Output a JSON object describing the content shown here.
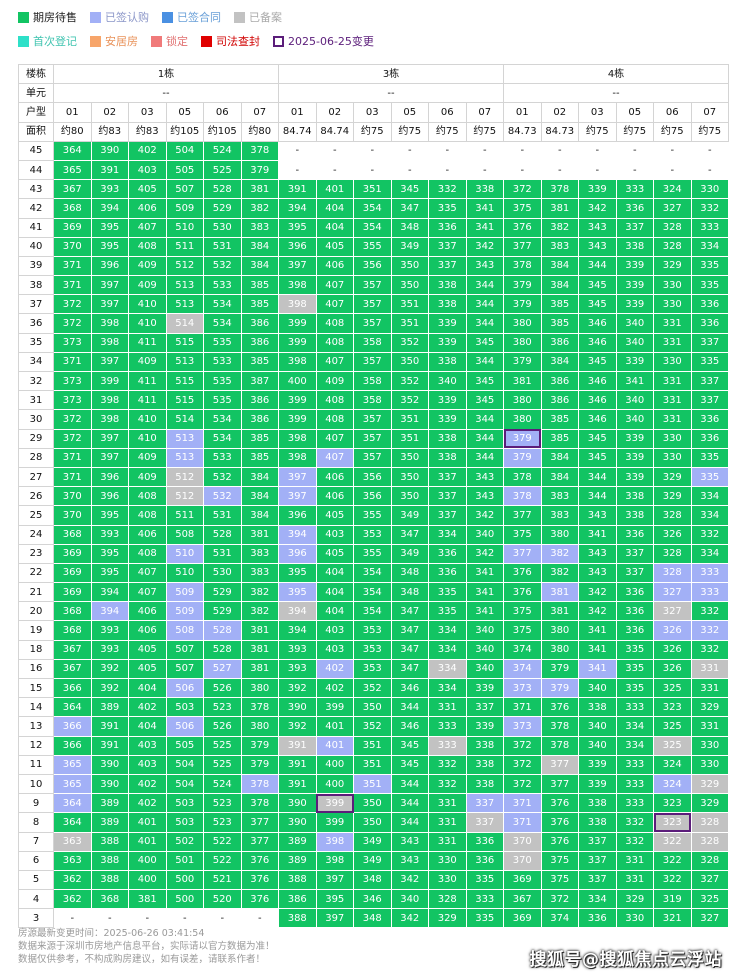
{
  "legend": {
    "row1": [
      {
        "label": "期房待售",
        "color": "#12c463",
        "text_color": "#222222",
        "style": "fill"
      },
      {
        "label": "已签认购",
        "color": "#a2b0f6",
        "text_color": "#8b96c8",
        "style": "fill"
      },
      {
        "label": "已签合同",
        "color": "#4a90e2",
        "text_color": "#6aa0d8",
        "style": "fill"
      },
      {
        "label": "已备案",
        "color": "#c2c2c2",
        "text_color": "#aaaaaa",
        "style": "fill"
      }
    ],
    "row2": [
      {
        "label": "首次登记",
        "color": "#2ee0c8",
        "text_color": "#40c4b0",
        "style": "fill"
      },
      {
        "label": "安居房",
        "color": "#f7a56a",
        "text_color": "#e8925a",
        "style": "fill"
      },
      {
        "label": "锁定",
        "color": "#f07a7a",
        "text_color": "#e07070",
        "style": "fill"
      },
      {
        "label": "司法查封",
        "color": "#e00000",
        "text_color": "#d00000",
        "style": "fill"
      },
      {
        "label": "2025-06-25变更",
        "color": "#5b1d7a",
        "text_color": "#5b1d7a",
        "style": "outline"
      }
    ]
  },
  "table": {
    "label_building": "楼栋",
    "label_unit": "单元",
    "label_room": "户型",
    "label_area": "面积",
    "empty_mark": "-",
    "buildings": [
      {
        "name": "1栋",
        "unit": "--",
        "rooms": [
          "01",
          "02",
          "03",
          "05",
          "06",
          "07"
        ],
        "areas": [
          "约80",
          "约83",
          "约83",
          "约105",
          "约105",
          "约80"
        ]
      },
      {
        "name": "3栋",
        "unit": "--",
        "rooms": [
          "01",
          "02",
          "03",
          "05",
          "06",
          "07"
        ],
        "areas": [
          "84.74",
          "84.74",
          "约75",
          "约75",
          "约75",
          "约75"
        ]
      },
      {
        "name": "4栋",
        "unit": "--",
        "rooms": [
          "01",
          "02",
          "03",
          "05",
          "06",
          "07"
        ],
        "areas": [
          "84.73",
          "84.73",
          "约75",
          "约75",
          "约75",
          "约75"
        ]
      }
    ],
    "rows": [
      {
        "floor": "45",
        "b1": "364 390 402 504 524 378",
        "b3": "- - - - - -",
        "b4": "- - - - - -"
      },
      {
        "floor": "44",
        "b1": "365 391 403 505 525 379",
        "b3": "- - - - - -",
        "b4": "- - - - - -"
      },
      {
        "floor": "43",
        "b1": "367 393 405 507 528 381",
        "b3": "391 401 351 345 332 338",
        "b4": "372 378 339 333 324 330"
      },
      {
        "floor": "42",
        "b1": "368 394 406 509 529 382",
        "b3": "394 404 354 347 335 341",
        "b4": "375 381 342 336 327 332"
      },
      {
        "floor": "41",
        "b1": "369 395 407 510 530 383",
        "b3": "395 404 354 348 336 341",
        "b4": "376 382 343 337 328 333"
      },
      {
        "floor": "40",
        "b1": "370 395 408 511 531 384",
        "b3": "396 405 355 349 337 342",
        "b4": "377 383 343 338 328 334"
      },
      {
        "floor": "39",
        "b1": "371 396 409 512 532 384",
        "b3": "397 406 356 350 337 343",
        "b4": "378 384 344 339 329 335"
      },
      {
        "floor": "38",
        "b1": "371 397 409 513 533 385",
        "b3": "398 407 357 350 338 344",
        "b4": "379 384 345 339 330 335"
      },
      {
        "floor": "37",
        "b1": "372 397 410 513 534 385",
        "b3": "398 407 357 351 338 344",
        "b4": "379 385 345 339 330 336"
      },
      {
        "floor": "36",
        "b1": "372 398 410 514 534 386",
        "b3": "399 408 357 351 339 344",
        "b4": "380 385 346 340 331 336"
      },
      {
        "floor": "35",
        "b1": "373 398 411 515 535 386",
        "b3": "399 408 358 352 339 345",
        "b4": "380 386 346 340 331 337"
      },
      {
        "floor": "34",
        "b1": "371 397 409 513 533 385",
        "b3": "398 407 357 350 338 344",
        "b4": "379 384 345 339 330 335"
      },
      {
        "floor": "32",
        "b1": "373 399 411 515 535 387",
        "b3": "400 409 358 352 340 345",
        "b4": "381 386 346 341 331 337"
      },
      {
        "floor": "31",
        "b1": "373 398 411 515 535 386",
        "b3": "399 408 358 352 339 345",
        "b4": "380 386 346 340 331 337"
      },
      {
        "floor": "30",
        "b1": "372 398 410 514 534 386",
        "b3": "399 408 357 351 339 344",
        "b4": "380 385 346 340 331 336"
      },
      {
        "floor": "29",
        "b1": "372 397 410 513 534 385",
        "b3": "398 407 357 351 338 344",
        "b4": "379 385 345 339 330 336"
      },
      {
        "floor": "28",
        "b1": "371 397 409 513 533 385",
        "b3": "398 407 357 350 338 344",
        "b4": "379 384 345 339 330 335"
      },
      {
        "floor": "27",
        "b1": "371 396 409 512 532 384",
        "b3": "397 406 356 350 337 343",
        "b4": "378 384 344 339 329 335"
      },
      {
        "floor": "26",
        "b1": "370 396 408 512 532 384",
        "b3": "397 406 356 350 337 343",
        "b4": "378 383 344 338 329 334"
      },
      {
        "floor": "25",
        "b1": "370 395 408 511 531 384",
        "b3": "396 405 355 349 337 342",
        "b4": "377 383 343 338 328 334"
      },
      {
        "floor": "24",
        "b1": "368 393 406 508 528 381",
        "b3": "394 403 353 347 334 340",
        "b4": "375 380 341 336 326 332"
      },
      {
        "floor": "23",
        "b1": "369 395 408 510 531 383",
        "b3": "396 405 355 349 336 342",
        "b4": "377 382 343 337 328 334"
      },
      {
        "floor": "22",
        "b1": "369 395 407 510 530 383",
        "b3": "395 404 354 348 336 341",
        "b4": "376 382 343 337 328 333"
      },
      {
        "floor": "21",
        "b1": "369 394 407 509 529 382",
        "b3": "395 404 354 348 335 341",
        "b4": "376 381 342 336 327 333"
      },
      {
        "floor": "20",
        "b1": "368 394 406 509 529 382",
        "b3": "394 404 354 347 335 341",
        "b4": "375 381 342 336 327 332"
      },
      {
        "floor": "19",
        "b1": "368 393 406 508 528 381",
        "b3": "394 403 353 347 334 340",
        "b4": "375 380 341 336 326 332"
      },
      {
        "floor": "18",
        "b1": "367 393 405 507 528 381",
        "b3": "393 403 353 347 334 340",
        "b4": "374 380 341 335 326 332"
      },
      {
        "floor": "16",
        "b1": "367 392 405 507 527 381",
        "b3": "393 402 353 347 334 340",
        "b4": "374 379 341 335 326 331"
      },
      {
        "floor": "15",
        "b1": "366 392 404 506 526 380",
        "b3": "392 402 352 346 334 339",
        "b4": "373 379 340 335 325 331"
      },
      {
        "floor": "14",
        "b1": "364 389 402 503 523 378",
        "b3": "390 399 350 344 331 337",
        "b4": "371 376 338 333 323 329"
      },
      {
        "floor": "13",
        "b1": "366 391 404 506 526 380",
        "b3": "392 401 352 346 333 339",
        "b4": "373 378 340 334 325 331"
      },
      {
        "floor": "12",
        "b1": "366 391 403 505 525 379",
        "b3": "391 401 351 345 333 338",
        "b4": "372 378 340 334 325 330"
      },
      {
        "floor": "11",
        "b1": "365 390 403 504 525 379",
        "b3": "391 400 351 345 332 338",
        "b4": "372 377 339 333 324 330"
      },
      {
        "floor": "10",
        "b1": "365 390 402 504 524 378",
        "b3": "391 400 351 344 332 338",
        "b4": "372 377 339 333 324 329"
      },
      {
        "floor": "9",
        "b1": "364 389 402 503 523 378",
        "b3": "390 399 350 344 331 337",
        "b4": "371 376 338 333 323 329"
      },
      {
        "floor": "8",
        "b1": "364 389 401 503 523 377",
        "b3": "390 399 350 344 331 337",
        "b4": "371 376 338 332 323 328"
      },
      {
        "floor": "7",
        "b1": "363 388 401 502 522 377",
        "b3": "389 398 349 343 331 336",
        "b4": "370 376 337 332 322 328"
      },
      {
        "floor": "6",
        "b1": "363 388 400 501 522 376",
        "b3": "389 398 349 343 330 336",
        "b4": "370 375 337 331 322 328"
      },
      {
        "floor": "5",
        "b1": "362 388 400 500 521 376",
        "b3": "388 397 348 342 330 335",
        "b4": "369 375 337 331 322 327"
      },
      {
        "floor": "4",
        "b1": "362 368 381 500 520 376",
        "b3": "386 395 346 340 328 333",
        "b4": "367 372 334 329 319 325"
      },
      {
        "floor": "3",
        "b1": "- - - - - -",
        "b3": "388 397 348 342 329 335",
        "b4": "369 374 336 330 321 327"
      }
    ],
    "statuses": {
      "blue": [
        "29-b1-3",
        "28-b1-3",
        "27-b3-0",
        "27-b4-5",
        "26-b1-4",
        "26-b3-0",
        "26-b4-0",
        "24-b3-0",
        "23-b1-3",
        "23-b3-0",
        "23-b4-0",
        "23-b4-1",
        "22-b4-4",
        "22-b4-5",
        "21-b1-3",
        "21-b3-0",
        "21-b4-1",
        "21-b4-4",
        "21-b4-5",
        "20-b1-1",
        "20-b1-3",
        "19-b1-3",
        "19-b1-4",
        "19-b4-4",
        "19-b4-5",
        "16-b1-4",
        "16-b3-1",
        "16-b4-0",
        "16-b4-2",
        "15-b1-3",
        "15-b4-0",
        "15-b4-1",
        "13-b1-0",
        "13-b1-3",
        "13-b4-0",
        "12-b3-1",
        "11-b1-0",
        "10-b1-0",
        "10-b1-5",
        "10-b3-2",
        "10-b4-4",
        "9-b1-0",
        "9-b3-5",
        "9-b4-0",
        "8-b4-0",
        "7-b3-1",
        "29-b4-0",
        "28-b3-1",
        "28-b4-0"
      ],
      "gray": [
        "37-b3-0",
        "36-b1-3",
        "27-b1-3",
        "26-b1-3",
        "20-b3-0",
        "20-b4-4",
        "16-b3-4",
        "16-b4-5",
        "12-b3-0",
        "12-b3-4",
        "12-b4-4",
        "11-b4-1",
        "10-b4-5",
        "9-b3-1",
        "8-b3-5",
        "8-b4-4",
        "8-b4-5",
        "7-b1-0",
        "7-b4-0",
        "7-b4-4",
        "7-b4-5",
        "6-b4-0"
      ],
      "changed": [
        "29-b4-0",
        "9-b3-1",
        "8-b4-4"
      ]
    }
  },
  "footer": {
    "line1": "房源最新变更时间：2025-06-26 03:41:54",
    "line2": "数据来源于深圳市房地产信息平台，实际请以官方数据为准！",
    "line3": "数据仅供参考，不构成购房建议，如有误差，请联系作者！"
  },
  "watermark": "搜狐号@搜狐焦点云浮站"
}
